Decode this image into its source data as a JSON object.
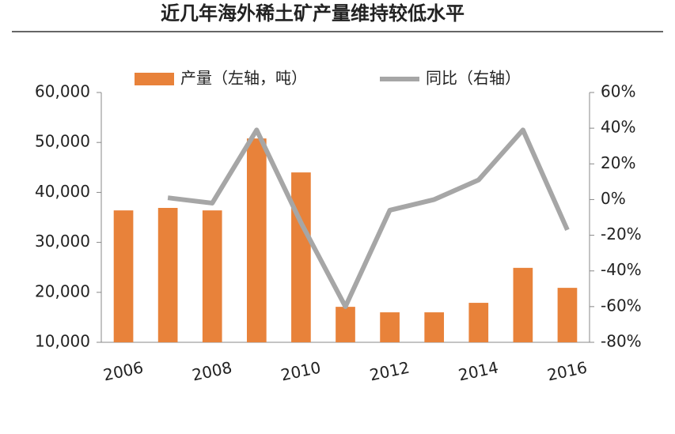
{
  "chart_data": {
    "type": "bar-line",
    "title": "近几年海外稀土矿产量维持较低水平",
    "categories": [
      "2006",
      null,
      "2008",
      null,
      "2010",
      null,
      "2012",
      null,
      "2014",
      null,
      "2016"
    ],
    "series": [
      {
        "name": "产量（左轴，吨）",
        "type": "bar",
        "color": "#e8823a",
        "values": [
          36400,
          36900,
          36400,
          50800,
          44000,
          17100,
          16000,
          16000,
          17900,
          24900,
          20900
        ]
      },
      {
        "name": "同比（右轴）",
        "type": "line",
        "axis": "y2",
        "color": "#a6a6a6",
        "values": [
          null,
          1,
          -2,
          39,
          -13,
          -60,
          -6,
          0,
          11,
          39,
          -17
        ]
      }
    ],
    "ylim": [
      10000,
      60000
    ],
    "yticks": [
      {
        "value": 10000,
        "label": "10,000"
      },
      {
        "value": 20000,
        "label": "20,000"
      },
      {
        "value": 30000,
        "label": "30,000"
      },
      {
        "value": 40000,
        "label": "40,000"
      },
      {
        "value": 50000,
        "label": "50,000"
      },
      {
        "value": 60000,
        "label": "60,000"
      }
    ],
    "y2lim": [
      -80,
      60
    ],
    "y2ticks": [
      {
        "value": -80,
        "label": "-80%"
      },
      {
        "value": -60,
        "label": "-60%"
      },
      {
        "value": -40,
        "label": "-40%"
      },
      {
        "value": -20,
        "label": "-20%"
      },
      {
        "value": 0,
        "label": "0%"
      },
      {
        "value": 20,
        "label": "20%"
      },
      {
        "value": 40,
        "label": "40%"
      },
      {
        "value": 60,
        "label": "60%"
      }
    ]
  }
}
